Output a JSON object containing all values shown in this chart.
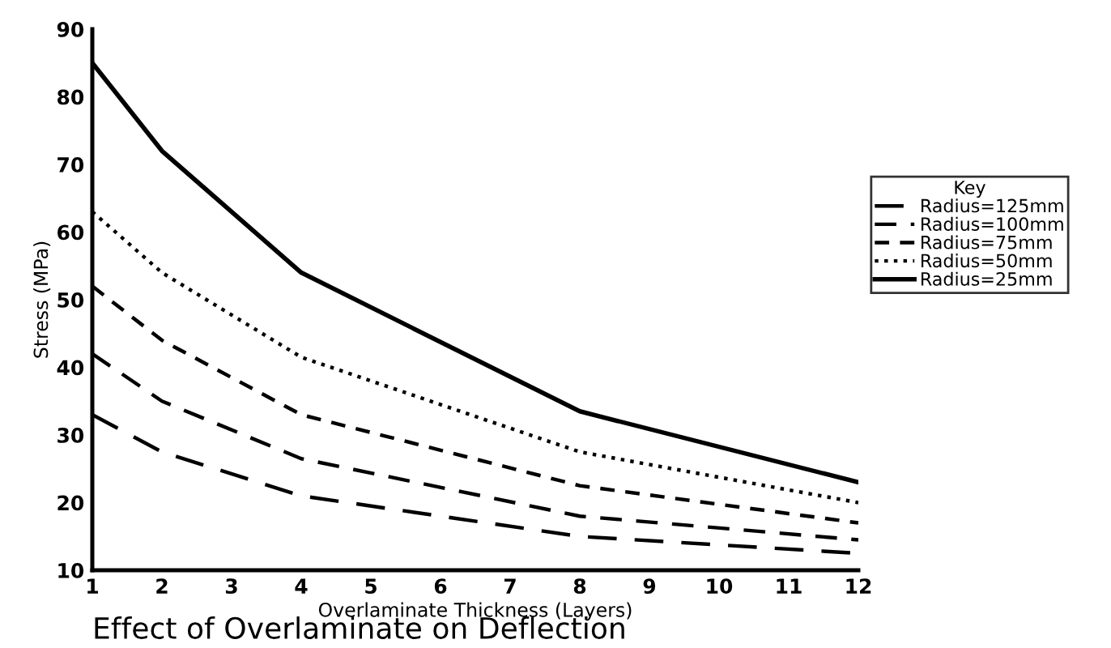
{
  "chart_data": {
    "type": "line",
    "xlabel": "Overlaminate Thickness (Layers)",
    "ylabel": "Stress (MPa)",
    "legend_title": "Key",
    "legend": "right",
    "grid": false,
    "marker": "none",
    "xlim": [
      1,
      12
    ],
    "xticks": [
      1,
      2,
      3,
      4,
      5,
      6,
      7,
      8,
      9,
      10,
      11,
      12
    ],
    "ylim": [
      10,
      90
    ],
    "yticks": [
      10,
      20,
      30,
      40,
      50,
      60,
      70,
      80,
      90
    ],
    "x": [
      1,
      2,
      4,
      8,
      12
    ],
    "series": [
      {
        "name": "Radius=125mm",
        "color": "#000000",
        "line_style": "dashed",
        "values": [
          33,
          27.5,
          21,
          15,
          12.5
        ]
      },
      {
        "name": "Radius=100mm",
        "color": "#000000",
        "line_style": "dashed",
        "values": [
          42,
          35,
          26.5,
          18,
          14.5
        ]
      },
      {
        "name": "Radius=75mm",
        "color": "#000000",
        "line_style": "dashed",
        "values": [
          52,
          44,
          33,
          22.5,
          17
        ]
      },
      {
        "name": "Radius=50mm",
        "color": "#000000",
        "line_style": "dotted",
        "values": [
          63,
          54,
          41.5,
          27.5,
          20
        ]
      },
      {
        "name": "Radius=25mm",
        "color": "#000000",
        "line_style": "solid",
        "values": [
          85,
          72,
          54,
          33.5,
          23
        ]
      }
    ],
    "annotations": [
      "Effect of Overlaminate on Deflection"
    ]
  }
}
